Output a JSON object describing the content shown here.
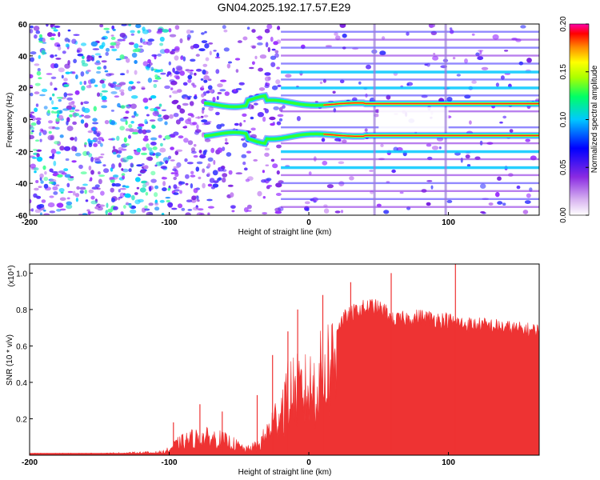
{
  "figure_title": "GN04.2025.192.17.57.E29",
  "colorbar": {
    "label": "Normalized spectral amplitude",
    "tick_labels": [
      "0.00",
      "0.05",
      "0.10",
      "0.15",
      "0.20"
    ],
    "range": [
      0.0,
      0.2
    ]
  },
  "chart_data": [
    {
      "type": "heatmap",
      "title": "",
      "xlabel": "Height of straight line (km)",
      "ylabel": "Frequency (Hz)",
      "xlim": [
        -200,
        165
      ],
      "ylim": [
        -60,
        60
      ],
      "x_tick_labels": [
        "-200",
        "-100",
        "0",
        "100"
      ],
      "y_tick_labels": [
        "60",
        "40",
        "20",
        "0",
        "-20",
        "-40",
        "-60"
      ],
      "colormap": "rainbow (white -> purple -> blue -> cyan -> green -> yellow -> red -> magenta)",
      "features": {
        "dominant_frequencies_hz": [
          10,
          -10
        ],
        "noise_region_km": [
          -200,
          -70
        ],
        "harmonic_band_region_km": [
          -20,
          165
        ],
        "vertical_breaks_km": [
          47,
          98
        ]
      },
      "grid": false
    },
    {
      "type": "area",
      "title": "",
      "xlabel": "Height of straight line (km)",
      "ylabel": "SNR (10 * v/v)",
      "y_multiplier": "(x10⁴)",
      "xlim": [
        -200,
        165
      ],
      "ylim": [
        0,
        1.05
      ],
      "x_tick_labels": [
        "-200",
        "-100",
        "0",
        "100"
      ],
      "y_tick_labels": [
        "0.2",
        "0.4",
        "0.6",
        "0.8",
        "1.0"
      ],
      "color": "#ee3333",
      "series": [
        {
          "x": [
            -200,
            -150,
            -105,
            -100,
            -95,
            -85,
            -75,
            -65,
            -55,
            -45,
            -35,
            -28,
            -22,
            -18,
            -12,
            -6,
            0,
            5,
            10,
            15,
            25,
            35,
            45,
            55,
            60,
            70,
            80,
            90,
            100,
            104,
            106,
            110,
            130,
            150,
            165
          ],
          "values": [
            0.01,
            0.01,
            0.02,
            0.04,
            0.08,
            0.12,
            0.13,
            0.12,
            0.09,
            0.04,
            0.08,
            0.2,
            0.3,
            0.4,
            0.48,
            0.46,
            0.48,
            0.52,
            0.6,
            0.68,
            0.78,
            0.83,
            0.85,
            0.82,
            0.77,
            0.78,
            0.79,
            0.78,
            0.77,
            0.76,
            0.76,
            0.75,
            0.74,
            0.72,
            0.71
          ]
        }
      ],
      "spikes": [
        {
          "x": -97,
          "value": 0.18
        },
        {
          "x": -78,
          "value": 0.28
        },
        {
          "x": -62,
          "value": 0.24
        },
        {
          "x": -37,
          "value": 0.33
        },
        {
          "x": -26,
          "value": 0.55
        },
        {
          "x": -15,
          "value": 0.68
        },
        {
          "x": -8,
          "value": 0.8
        },
        {
          "x": 10,
          "value": 0.88
        },
        {
          "x": 30,
          "value": 0.95
        },
        {
          "x": 59,
          "value": 1.0
        },
        {
          "x": 105,
          "value": 1.06
        }
      ],
      "grid": false
    }
  ]
}
